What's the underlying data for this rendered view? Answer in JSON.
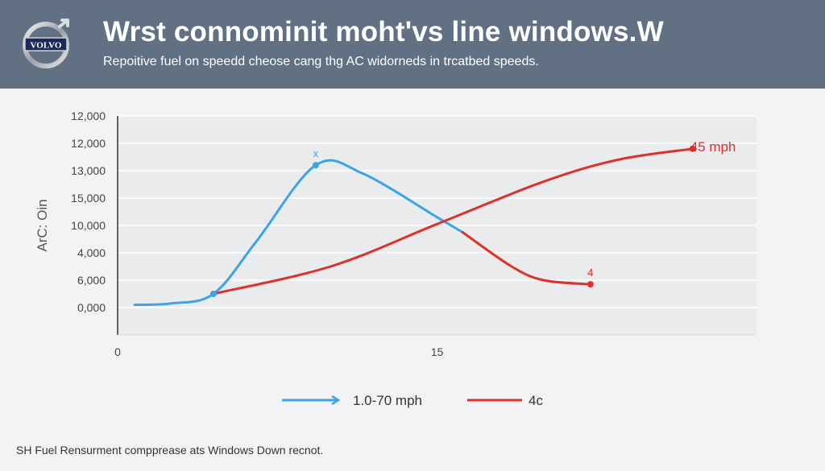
{
  "header": {
    "brand_text": "VOLVO",
    "title": "Wrst connominit moht'vs line windows.W",
    "subtitle": "Repoitive fuel on speedd cheose cang thg AC widorneds in trcatbed speeds."
  },
  "footer_note": "SH Fuel Rensurment compprease ats Windows Down recnot.",
  "colors": {
    "header_bg": "#617083",
    "series_blue": "#3ba4e6",
    "series_red": "#e0302a",
    "plot_bg": "#eaebed"
  },
  "chart_data": {
    "type": "line",
    "title": "Wrst connominit moht'vs line windows.W",
    "ylabel": "ArC: Oin",
    "xlabel": "",
    "x_ticks": [
      {
        "value": 0,
        "label": "0"
      },
      {
        "value": 15,
        "label": "15"
      }
    ],
    "y_ticks": [
      {
        "value": 0,
        "label": "0,000"
      },
      {
        "value": 1,
        "label": "6,000"
      },
      {
        "value": 2,
        "label": "4,000"
      },
      {
        "value": 3,
        "label": "10,000"
      },
      {
        "value": 4,
        "label": "15,000"
      },
      {
        "value": 5,
        "label": "13,000"
      },
      {
        "value": 6,
        "label": "12,000"
      },
      {
        "value": 7,
        "label": "12,000"
      }
    ],
    "xlim": [
      0,
      30
    ],
    "ylim": [
      -1,
      7
    ],
    "grid": true,
    "legend_position": "bottom",
    "series": [
      {
        "name": "1.0-70 mph",
        "color": "#3ba4e6",
        "points": [
          {
            "x": 0.8,
            "y": 0.1
          },
          {
            "x": 2.5,
            "y": 0.15
          },
          {
            "x": 4.5,
            "y": 0.5
          },
          {
            "x": 6.5,
            "y": 2.4
          },
          {
            "x": 9.3,
            "y": 5.2
          },
          {
            "x": 11.5,
            "y": 4.9
          },
          {
            "x": 15,
            "y": 3.3
          },
          {
            "x": 16.2,
            "y": 2.75
          }
        ],
        "markers": [
          {
            "x": 4.5,
            "y": 0.5,
            "label": ""
          },
          {
            "x": 9.3,
            "y": 5.2,
            "label": "x"
          }
        ]
      },
      {
        "name": "4c",
        "color": "#e0302a",
        "points": [
          {
            "x": 4.5,
            "y": 0.5
          },
          {
            "x": 10,
            "y": 1.5
          },
          {
            "x": 15,
            "y": 3.05
          },
          {
            "x": 20,
            "y": 4.6
          },
          {
            "x": 23.5,
            "y": 5.4
          },
          {
            "x": 27,
            "y": 5.8
          }
        ],
        "markers": [
          {
            "x": 27,
            "y": 5.8,
            "label": "45 mph"
          }
        ]
      },
      {
        "name": "",
        "color": "#e0302a",
        "points": [
          {
            "x": 16.2,
            "y": 2.75
          },
          {
            "x": 18.5,
            "y": 1.5
          },
          {
            "x": 20,
            "y": 1.0
          },
          {
            "x": 22.2,
            "y": 0.85
          }
        ],
        "markers": [
          {
            "x": 22.2,
            "y": 0.85,
            "label": "4"
          }
        ]
      }
    ],
    "legend": [
      {
        "label": "1.0-70 mph",
        "color": "#3ba4e6"
      },
      {
        "label": "4c",
        "color": "#e0302a"
      }
    ]
  }
}
